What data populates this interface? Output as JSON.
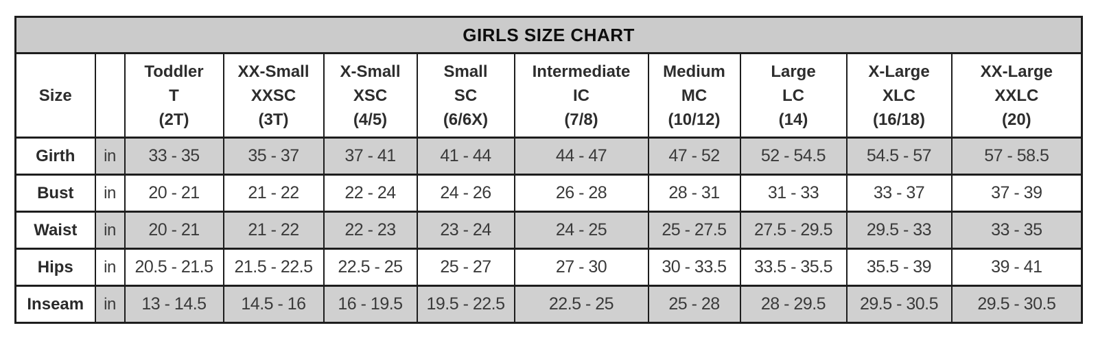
{
  "chart_data": {
    "type": "table",
    "title": "GIRLS SIZE CHART",
    "corner_header": "Size",
    "unit": "in",
    "column_headers": [
      [
        "Toddler",
        "T",
        "(2T)"
      ],
      [
        "XX-Small",
        "XXSC",
        "(3T)"
      ],
      [
        "X-Small",
        "XSC",
        "(4/5)"
      ],
      [
        "Small",
        "SC",
        "(6/6X)"
      ],
      [
        "Intermediate",
        "IC",
        "(7/8)"
      ],
      [
        "Medium",
        "MC",
        "(10/12)"
      ],
      [
        "Large",
        "LC",
        "(14)"
      ],
      [
        "X-Large",
        "XLC",
        "(16/18)"
      ],
      [
        "XX-Large",
        "XXLC",
        "(20)"
      ]
    ],
    "row_headers": [
      "Girth",
      "Bust",
      "Waist",
      "Hips",
      "Inseam"
    ],
    "cells": [
      [
        "33 - 35",
        "35 - 37",
        "37 - 41",
        "41 - 44",
        "44 - 47",
        "47 - 52",
        "52 - 54.5",
        "54.5 - 57",
        "57 - 58.5"
      ],
      [
        "20 - 21",
        "21 - 22",
        "22 - 24",
        "24 - 26",
        "26 - 28",
        "28 - 31",
        "31 - 33",
        "33 - 37",
        "37 - 39"
      ],
      [
        "20 - 21",
        "21 - 22",
        "22 - 23",
        "23 - 24",
        "24 - 25",
        "25 - 27.5",
        "27.5 - 29.5",
        "29.5 - 33",
        "33 - 35"
      ],
      [
        "20.5 - 21.5",
        "21.5 - 22.5",
        "22.5 - 25",
        "25 - 27",
        "27 - 30",
        "30 - 33.5",
        "33.5 - 35.5",
        "35.5 - 39",
        "39 - 41"
      ],
      [
        "13 - 14.5",
        "14.5 - 16",
        "16 - 19.5",
        "19.5 - 22.5",
        "22.5 - 25",
        "25 - 28",
        "28 - 29.5",
        "29.5 - 30.5",
        "29.5 - 30.5"
      ]
    ],
    "layout": {
      "striped_rows": "Girth, Waist, Inseam shaded gray; label column always white",
      "grid": "on"
    }
  },
  "colors": {
    "stripe_gray": "#d0d0d0",
    "title_gray": "#cbcbcb",
    "border": "#1d1d1d",
    "text": "#3a3a3a",
    "background": "#ffffff"
  }
}
